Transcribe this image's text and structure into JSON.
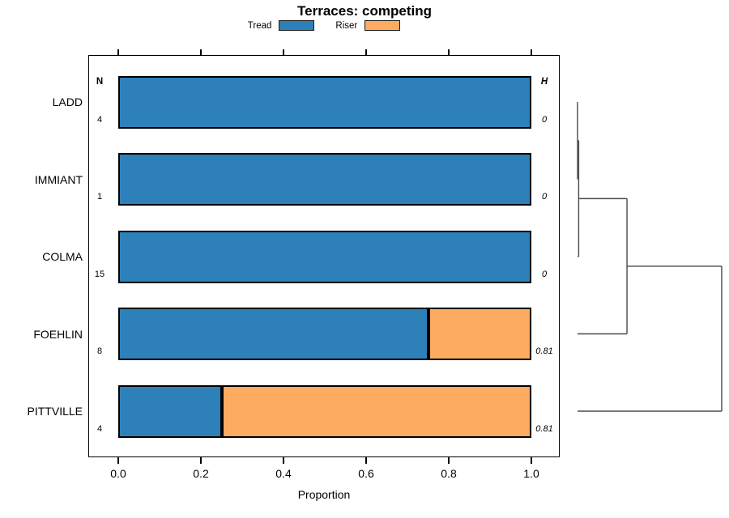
{
  "title": "Terraces: competing",
  "legend": {
    "items": [
      {
        "label": "Tread",
        "color": "#2e80b9"
      },
      {
        "label": "Riser",
        "color": "#fcab60"
      }
    ]
  },
  "columns": {
    "n_header": "N",
    "h_header": "H"
  },
  "x_axis": {
    "label": "Proportion",
    "ticks": [
      "0.0",
      "0.2",
      "0.4",
      "0.6",
      "0.8",
      "1.0"
    ]
  },
  "chart_data": {
    "type": "bar",
    "orientation": "horizontal",
    "stacked": true,
    "title": "Terraces: competing",
    "xlabel": "Proportion",
    "xlim": [
      0,
      1
    ],
    "grid": false,
    "legend_position": "top-center",
    "categories": [
      "LADD",
      "IMMIANT",
      "COLMA",
      "FOEHLIN",
      "PITTVILLE"
    ],
    "n_values": [
      "4",
      "1",
      "15",
      "8",
      "4"
    ],
    "h_values": [
      "0",
      "0",
      "0",
      "0.81",
      "0.81"
    ],
    "series": [
      {
        "name": "Tread",
        "color": "#2e80b9",
        "values": [
          1.0,
          1.0,
          1.0,
          0.75,
          0.25
        ]
      },
      {
        "name": "Riser",
        "color": "#fcab60",
        "values": [
          0.0,
          0.0,
          0.0,
          0.25,
          0.75
        ]
      }
    ],
    "dendrogram": {
      "note": "right-side cluster tree, heights relative 0-1",
      "merges": [
        {
          "a": "LADD",
          "b": "IMMIANT",
          "height": 0
        },
        {
          "a": "m0",
          "b": "COLMA",
          "height": 0.008
        },
        {
          "a": "m1",
          "b": "FOEHLIN",
          "height": 0.343
        },
        {
          "a": "m2",
          "b": "PITTVILLE",
          "height": 1.0
        }
      ],
      "line_color": "#4a4a4a"
    }
  }
}
